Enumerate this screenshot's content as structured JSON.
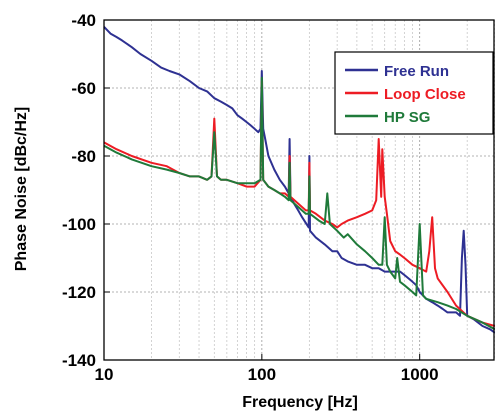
{
  "chart_data": {
    "type": "line",
    "title": "",
    "xlabel": "Frequency [Hz]",
    "ylabel": "Phase Noise [dBc/Hz]",
    "xscale": "log",
    "xlim": [
      10,
      3000
    ],
    "ylim": [
      -140,
      -40
    ],
    "xticks": [
      10,
      100,
      1000
    ],
    "xtick_labels": [
      "10",
      "100",
      "1000"
    ],
    "yticks": [
      -140,
      -120,
      -100,
      -80,
      -60,
      -40
    ],
    "ytick_labels": [
      "-140",
      "-120",
      "-100",
      "-80",
      "-60",
      "-40"
    ],
    "grid": true,
    "legend_position": "top-right",
    "series": [
      {
        "name": "Free Run",
        "color": "#2e3192",
        "x": [
          10,
          11,
          12,
          13,
          15,
          17,
          20,
          23,
          26,
          30,
          35,
          40,
          45,
          50,
          55,
          60,
          65,
          70,
          75,
          80,
          85,
          90,
          95,
          98,
          100,
          102,
          105,
          110,
          120,
          130,
          140,
          148,
          150,
          152,
          160,
          170,
          180,
          198,
          200,
          202,
          220,
          250,
          280,
          300,
          320,
          350,
          400,
          450,
          500,
          550,
          600,
          650,
          700,
          750,
          800,
          850,
          900,
          950,
          1000,
          1100,
          1200,
          1300,
          1400,
          1500,
          1600,
          1700,
          1800,
          1850,
          1900,
          1950,
          2000,
          2200,
          2500,
          2800,
          3000
        ],
        "y": [
          -42,
          -44,
          -45,
          -46,
          -48,
          -50,
          -52,
          -54,
          -55,
          -56,
          -58,
          -60,
          -61,
          -63,
          -64,
          -65,
          -66,
          -68,
          -69,
          -70,
          -71,
          -72,
          -73,
          -72,
          -55,
          -72,
          -75,
          -80,
          -84,
          -87,
          -89,
          -91,
          -75,
          -92,
          -94,
          -96,
          -98,
          -101,
          -80,
          -102,
          -104,
          -106,
          -108,
          -108,
          -110,
          -111,
          -112,
          -112,
          -113,
          -113,
          -114,
          -114,
          -114,
          -114,
          -115,
          -116,
          -117,
          -118,
          -120,
          -122,
          -123,
          -124,
          -125,
          -126,
          -126,
          -126,
          -127,
          -110,
          -102,
          -112,
          -127,
          -128,
          -130,
          -131,
          -132
        ]
      },
      {
        "name": "Loop Close",
        "color": "#ed1c24",
        "x": [
          10,
          12,
          15,
          20,
          25,
          30,
          35,
          40,
          45,
          48,
          50,
          52,
          55,
          60,
          70,
          80,
          90,
          98,
          100,
          102,
          110,
          120,
          130,
          140,
          148,
          150,
          152,
          170,
          190,
          198,
          200,
          202,
          220,
          250,
          280,
          300,
          320,
          350,
          400,
          450,
          500,
          530,
          550,
          570,
          580,
          600,
          620,
          650,
          700,
          750,
          800,
          900,
          1000,
          1100,
          1150,
          1200,
          1250,
          1300,
          1500,
          1700,
          2000,
          2500,
          3000
        ],
        "y": [
          -76,
          -78,
          -80,
          -82,
          -83,
          -85,
          -86,
          -86,
          -87,
          -86,
          -69,
          -86,
          -87,
          -87,
          -88,
          -89,
          -89,
          -87,
          -58,
          -87,
          -89,
          -90,
          -91,
          -91,
          -92,
          -80,
          -92,
          -94,
          -96,
          -96,
          -82,
          -96,
          -97,
          -99,
          -100,
          -101,
          -100,
          -99,
          -98,
          -97,
          -96,
          -93,
          -75,
          -92,
          -78,
          -92,
          -97,
          -105,
          -108,
          -109,
          -110,
          -112,
          -113,
          -114,
          -108,
          -98,
          -113,
          -116,
          -120,
          -124,
          -127,
          -129,
          -130
        ]
      },
      {
        "name": "HP SG",
        "color": "#1f7a3a",
        "x": [
          10,
          12,
          15,
          20,
          25,
          30,
          35,
          40,
          45,
          48,
          50,
          52,
          55,
          60,
          70,
          80,
          90,
          98,
          100,
          102,
          110,
          120,
          130,
          140,
          148,
          150,
          152,
          170,
          190,
          198,
          200,
          202,
          230,
          250,
          260,
          270,
          300,
          330,
          350,
          400,
          450,
          500,
          550,
          580,
          600,
          620,
          650,
          700,
          720,
          750,
          800,
          900,
          950,
          1000,
          1050,
          1100,
          1300,
          1500,
          1700,
          2000,
          2500,
          3000
        ],
        "y": [
          -77,
          -79,
          -81,
          -83,
          -84,
          -85,
          -86,
          -86,
          -87,
          -86,
          -73,
          -86,
          -87,
          -87,
          -88,
          -88,
          -88,
          -87,
          -57,
          -87,
          -89,
          -90,
          -91,
          -92,
          -93,
          -82,
          -93,
          -95,
          -97,
          -97,
          -86,
          -97,
          -99,
          -100,
          -91,
          -100,
          -102,
          -104,
          -103,
          -106,
          -108,
          -110,
          -112,
          -112,
          -98,
          -112,
          -114,
          -116,
          -110,
          -117,
          -118,
          -120,
          -121,
          -100,
          -121,
          -122,
          -123,
          -124,
          -125,
          -127,
          -129,
          -131
        ]
      }
    ]
  }
}
